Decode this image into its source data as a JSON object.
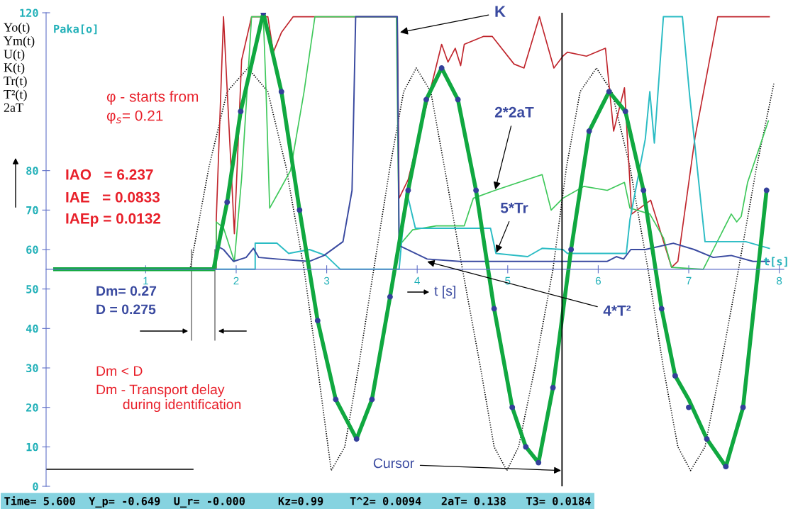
{
  "chart_data": {
    "type": "line",
    "ylabel": "Yo(t)\nYm(t)\nU(t)\nK(t)\nTr(t)\nT²(t)\n2aT",
    "xlim": [
      -0.1,
      8.05
    ],
    "ylim": [
      0,
      120
    ],
    "xticks": [
      1,
      2,
      3,
      4,
      5,
      6,
      7,
      8
    ],
    "yticks": [
      0,
      10,
      20,
      30,
      40,
      50,
      60,
      70,
      80,
      120
    ],
    "grid": false,
    "series": [
      {
        "color": "#000000",
        "line_style": "dotted",
        "x": [
          1.49,
          1.7,
          1.9,
          2.13,
          2.35,
          2.55,
          2.75,
          2.9,
          3.05,
          3.2,
          3.35,
          3.52,
          3.7,
          3.85,
          3.99,
          4.15,
          4.3,
          4.5,
          4.7,
          4.85,
          4.99,
          5.12,
          5.3,
          5.5,
          5.65,
          5.8,
          5.98,
          6.15,
          6.35,
          6.55,
          6.72,
          6.88,
          7.02,
          7.18,
          7.35,
          7.55,
          7.75,
          7.94
        ],
        "values": [
          55,
          81,
          100,
          106,
          100,
          81,
          55,
          30,
          4,
          10,
          30,
          55,
          81,
          100,
          106,
          100,
          81,
          55,
          30,
          10,
          4,
          10,
          30,
          55,
          81,
          100,
          106,
          100,
          81,
          55,
          30,
          10,
          4,
          10,
          30,
          55,
          81,
          102
        ]
      },
      {
        "color": "#c0262d",
        "x": [
          1.78,
          1.78,
          1.86,
          1.98,
          2.06,
          2.17,
          2.35,
          2.41,
          2.5,
          2.63,
          3.78,
          3.8,
          3.9,
          4.27,
          4.34,
          4.42,
          4.48,
          4.52,
          4.73,
          4.83,
          5.07,
          5.18,
          5.35,
          5.51,
          5.61,
          5.66,
          5.87,
          6.08,
          6.17,
          6.29,
          6.37,
          6.58,
          6.81,
          6.88,
          7.07,
          7.32,
          7.89
        ],
        "values": [
          55,
          67.5,
          119,
          64,
          108,
          119,
          119,
          110,
          115,
          119,
          119,
          73,
          77.7,
          112,
          107.5,
          111,
          106.6,
          112,
          114,
          114,
          107,
          106,
          119,
          106,
          109,
          110,
          109,
          111,
          90,
          101,
          69,
          72.5,
          55.5,
          57,
          88.5,
          119,
          119
        ]
      },
      {
        "color": "#3ec85a",
        "x": [
          1.78,
          1.78,
          1.86,
          1.98,
          2.06,
          2.12,
          2.17,
          2.3,
          2.33,
          2.37,
          2.48,
          2.6,
          2.75,
          2.87,
          3.77,
          3.8,
          3.95,
          4.21,
          4.52,
          4.62,
          4.86,
          5.38,
          5.48,
          5.61,
          5.84,
          6.1,
          6.29,
          6.35,
          6.57,
          6.72,
          6.81,
          7.16,
          7.47,
          7.53,
          7.58,
          7.65,
          7.88
        ],
        "values": [
          55.5,
          67,
          65.5,
          57,
          78,
          100,
          119,
          119,
          100,
          70.5,
          75,
          80,
          100,
          119,
          119,
          61,
          65,
          66,
          66,
          73,
          75,
          79,
          70,
          73,
          76,
          75,
          77,
          70.5,
          69,
          63,
          55.5,
          55,
          69,
          67,
          68.4,
          77,
          92.6
        ]
      },
      {
        "color": "#2bbcc4",
        "x": [
          1.78,
          2.21,
          2.21,
          2.45,
          2.58,
          2.81,
          2.99,
          3.15,
          3.8,
          3.88,
          3.98,
          4.81,
          4.87,
          5.22,
          5.38,
          5.61,
          5.66,
          6.31,
          6.35,
          6.52,
          6.57,
          6.62,
          6.72,
          6.93,
          7.01,
          7.18,
          7.63,
          7.89
        ],
        "values": [
          55,
          55,
          61.6,
          61.6,
          59,
          60,
          58.5,
          55,
          55,
          75,
          65.4,
          65.4,
          59,
          58.2,
          60.3,
          60,
          59,
          59,
          67.5,
          88,
          100,
          87,
          119,
          119,
          99,
          62,
          62,
          60.3
        ]
      },
      {
        "color": "#3a4aa0",
        "x": [
          0,
          1.76,
          1.78,
          1.86,
          1.97,
          2.11,
          2.19,
          2.25,
          2.45,
          2.81,
          2.97,
          3.18,
          3.28,
          3.32,
          3.78,
          3.8,
          4.11,
          4.47,
          6.1,
          6.2,
          6.28,
          6.36,
          6.52,
          6.83,
          7.06,
          7.27,
          7.47,
          7.71,
          7.89
        ],
        "values": [
          55,
          55,
          61,
          60,
          57,
          58,
          60.3,
          58,
          57.6,
          57,
          58.5,
          62,
          75,
          119,
          119,
          61,
          57.6,
          57,
          57,
          58.2,
          57.6,
          60,
          60,
          61.6,
          60,
          58,
          58.5,
          57,
          57
        ]
      },
      {
        "color": "#10a840",
        "x": [
          0,
          1.75,
          1.9,
          2.05,
          2.3,
          2.5,
          2.7,
          2.9,
          3.1,
          3.33,
          3.5,
          3.7,
          3.9,
          4.1,
          4.27,
          4.45,
          4.65,
          4.85,
          5.05,
          5.2,
          5.34,
          5.5,
          5.7,
          5.9,
          6.12,
          6.3,
          6.5,
          6.7,
          6.85,
          7.0,
          7.2,
          7.41,
          7.6,
          7.86
        ],
        "values": [
          55,
          55,
          72,
          95,
          120,
          100,
          70,
          42,
          22,
          12,
          22,
          48,
          75,
          98,
          106,
          98,
          75,
          45,
          20,
          10,
          6,
          25,
          60,
          90,
          100,
          95,
          75,
          45,
          28,
          22,
          12,
          5,
          20,
          75
        ]
      },
      {
        "type": "scatter",
        "color": "#34409a",
        "marker": "circle",
        "x": [
          1.9,
          2.05,
          2.3,
          2.5,
          2.7,
          2.9,
          3.1,
          3.33,
          3.5,
          3.7,
          3.9,
          4.1,
          4.27,
          4.45,
          4.65,
          4.85,
          5.05,
          5.2,
          5.34,
          5.5,
          5.7,
          5.9,
          6.12,
          6.3,
          6.5,
          6.7,
          6.85,
          7.0,
          7.2,
          7.41,
          7.6,
          7.86
        ],
        "values": [
          72,
          95,
          120,
          100,
          70,
          42,
          22,
          12,
          22,
          48,
          75,
          98,
          106,
          98,
          75,
          45,
          20,
          10,
          6,
          25,
          60,
          90,
          100,
          95,
          75,
          45,
          28,
          20,
          12,
          5,
          20,
          75
        ]
      }
    ],
    "ref_lines": [
      {
        "axis": "x",
        "value": 5.6,
        "color": "#000000"
      }
    ],
    "annotations": [
      "Paka[o]",
      "φ - starts from",
      "φ$_{s}$= 0.21",
      "IAO   = 6.237",
      "IAE   = 0.0833",
      "IAEp = 0.0132",
      "Dm= 0.27",
      "D = 0.275",
      "Dm < D",
      "Dm - Transport delay\n       during identification",
      "t [s]",
      "t[s]",
      {
        "text": "K",
        "x": 3.8,
        "y": 115
      },
      {
        "text": "2*2aT",
        "x": 4.86,
        "y": 75
      },
      {
        "text": "5*Tr",
        "x": 4.87,
        "y": 59
      },
      {
        "text": "4*T²",
        "x": 4.1,
        "y": 57
      },
      {
        "text": "Cursor",
        "x": 5.6,
        "y": 4
      },
      "Time= 5.600  Y_p= -0.649  U_r= -0.000     Kz=0.99    T^2= 0.0094   2aT= 0.138   T3= 0.0184"
    ]
  }
}
